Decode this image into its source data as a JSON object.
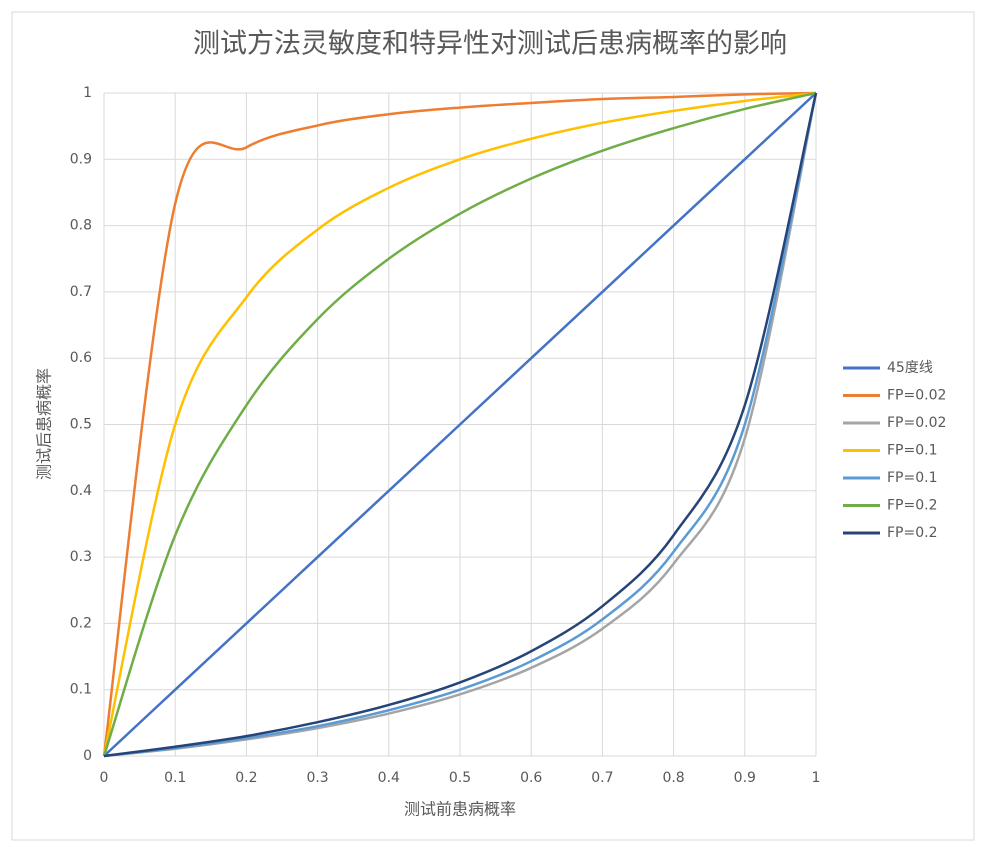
{
  "chart_data": {
    "type": "line",
    "title": "测试方法灵敏度和特异性对测试后患病概率的影响",
    "x_label": "测试前患病概率",
    "y_label": "测试后患病概率",
    "x": [
      0,
      0.1,
      0.2,
      0.3,
      0.4,
      0.5,
      0.6,
      0.7,
      0.8,
      0.9,
      1
    ],
    "xlim": [
      0,
      1
    ],
    "xticks": [
      0,
      0.1,
      0.2,
      0.3,
      0.4,
      0.5,
      0.6,
      0.7,
      0.8,
      0.9,
      1
    ],
    "ylim": [
      0,
      1
    ],
    "yticks": [
      0,
      0.1,
      0.2,
      0.3,
      0.4,
      0.5,
      0.6,
      0.7,
      0.8,
      0.9,
      1
    ],
    "grid": true,
    "smooth": true,
    "legend": "right",
    "series": [
      {
        "name": "45度线",
        "color": "#4472c4",
        "values": [
          0,
          0.1,
          0.2,
          0.3,
          0.4,
          0.5,
          0.6,
          0.7,
          0.8,
          0.9,
          1
        ]
      },
      {
        "name": "FP=0.02",
        "color": "#ed7d31",
        "values": [
          0,
          0.833,
          0.918,
          0.951,
          0.968,
          0.978,
          0.985,
          0.991,
          0.994,
          0.998,
          1
        ]
      },
      {
        "name": "FP=0.02",
        "color": "#a5a5a5",
        "values": [
          0,
          0.011,
          0.025,
          0.042,
          0.064,
          0.093,
          0.133,
          0.192,
          0.29,
          0.479,
          1
        ]
      },
      {
        "name": "FP=0.1",
        "color": "#ffc000",
        "values": [
          0,
          0.5,
          0.692,
          0.794,
          0.857,
          0.9,
          0.931,
          0.955,
          0.973,
          0.988,
          1
        ]
      },
      {
        "name": "FP=0.1",
        "color": "#5b9bd5",
        "values": [
          0,
          0.012,
          0.027,
          0.045,
          0.069,
          0.1,
          0.143,
          0.206,
          0.308,
          0.5,
          1
        ]
      },
      {
        "name": "FP=0.2",
        "color": "#70ad47",
        "values": [
          0,
          0.333,
          0.529,
          0.659,
          0.75,
          0.818,
          0.871,
          0.913,
          0.947,
          0.976,
          1
        ]
      },
      {
        "name": "FP=0.2",
        "color": "#264478",
        "values": [
          0,
          0.014,
          0.03,
          0.051,
          0.077,
          0.111,
          0.158,
          0.226,
          0.333,
          0.529,
          1
        ]
      }
    ]
  }
}
